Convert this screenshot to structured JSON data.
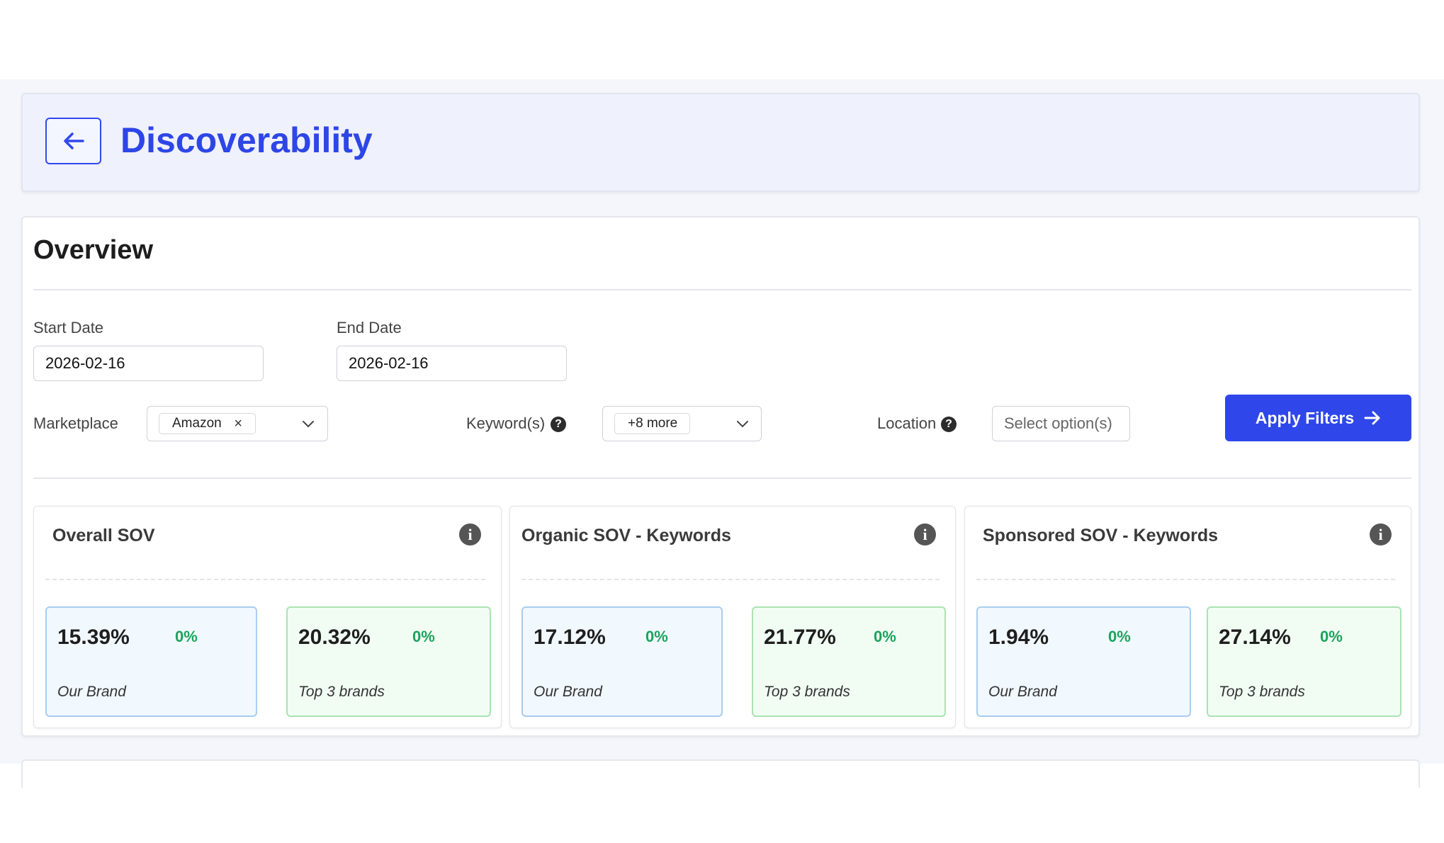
{
  "header": {
    "title": "Discoverability"
  },
  "overview": {
    "title": "Overview",
    "filters": {
      "start_date": {
        "label": "Start Date",
        "value": "2026-02-16"
      },
      "end_date": {
        "label": "End Date",
        "value": "2026-02-16"
      },
      "marketplace": {
        "label": "Marketplace",
        "selected_chip": "Amazon",
        "remove_symbol": "×"
      },
      "keywords": {
        "label": "Keyword(s)",
        "help": "?",
        "selected_chip": "+8 more"
      },
      "location": {
        "label": "Location",
        "help": "?",
        "placeholder": "Select option(s)"
      },
      "apply_label": "Apply Filters"
    },
    "cards": [
      {
        "title": "Overall SOV",
        "metrics": [
          {
            "value": "15.39%",
            "change": "0%",
            "label": "Our Brand"
          },
          {
            "value": "20.32%",
            "change": "0%",
            "label": "Top 3 brands"
          }
        ]
      },
      {
        "title": "Organic SOV - Keywords",
        "metrics": [
          {
            "value": "17.12%",
            "change": "0%",
            "label": "Our Brand"
          },
          {
            "value": "21.77%",
            "change": "0%",
            "label": "Top 3 brands"
          }
        ]
      },
      {
        "title": "Sponsored SOV - Keywords",
        "metrics": [
          {
            "value": "1.94%",
            "change": "0%",
            "label": "Our Brand"
          },
          {
            "value": "27.14%",
            "change": "0%",
            "label": "Top 3 brands"
          }
        ]
      }
    ],
    "info_symbol": "i"
  },
  "icons": {
    "back": "arrow-left-icon",
    "apply": "arrow-right-icon",
    "dropdown": "chevron-down-icon",
    "info": "info-icon",
    "help": "question-circle-icon"
  },
  "colors": {
    "accent": "#2f47ea",
    "positive": "#1ba35c",
    "header_bg": "#eff1fc"
  }
}
